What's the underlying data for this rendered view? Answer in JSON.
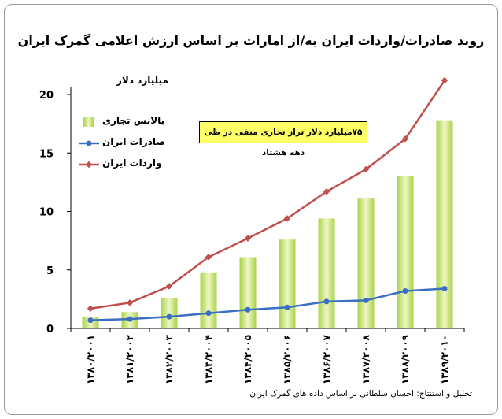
{
  "title": "روند صادرات/واردات ایران به/از امارات بر اساس ارزش اعلامی گمرک ایران",
  "credit": "تحلیل و استنتاج: احسان سلطانی بر اساس داده های گمرک ایران",
  "callout": "۷۵میلیارد دلار تراز تجاری منفی در طی دهه هشتاد",
  "colors": {
    "bar_light": "#eef7c4",
    "bar_dark": "#a9d34a",
    "exports": "#3b6fc2",
    "imports": "#c0504d",
    "callout_bg": "#ffff66"
  },
  "chart_data": {
    "type": "bar+line",
    "ylabel": "میلیارد دلار",
    "ylim": [
      0,
      20
    ],
    "yticks": [
      "0",
      "5",
      "10",
      "15",
      "20"
    ],
    "categories": [
      "۱۳۸۰/۲۰۰۱",
      "۱۳۸۱/۲۰۰۲",
      "۱۳۸۲/۲۰۰۳",
      "۱۳۸۳/۲۰۰۴",
      "۱۳۸۴/۲۰۰۵",
      "۱۳۸۵/۲۰۰۶",
      "۱۳۸۶/۲۰۰۷",
      "۱۳۸۷/۲۰۰۸",
      "۱۳۸۸/۲۰۰۹",
      "۱۳۸۹/۲۰۱۰"
    ],
    "series": [
      {
        "name": "بالانس تجاری",
        "kind": "bar",
        "values": [
          1.0,
          1.4,
          2.6,
          4.8,
          6.1,
          7.6,
          9.4,
          11.1,
          13.0,
          17.8
        ]
      },
      {
        "name": "صادرات ایران",
        "kind": "line",
        "values": [
          0.7,
          0.8,
          1.0,
          1.3,
          1.6,
          1.8,
          2.3,
          2.4,
          3.2,
          3.4
        ]
      },
      {
        "name": "واردات ایران",
        "kind": "line",
        "values": [
          1.7,
          2.2,
          3.6,
          6.1,
          7.7,
          9.4,
          11.7,
          13.6,
          16.2,
          21.2
        ]
      }
    ],
    "legend": "top-left",
    "grid": false
  }
}
